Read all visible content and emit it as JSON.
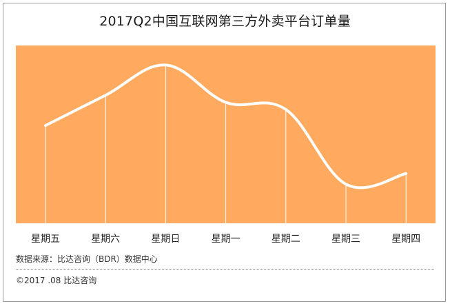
{
  "chart_data": {
    "type": "line",
    "title": "2017Q2中国互联网第三方外卖平台订单量",
    "categories": [
      "星期五",
      "星期六",
      "星期日",
      "星期一",
      "星期二",
      "星期三",
      "星期四"
    ],
    "series": [
      {
        "values": [
          55,
          72,
          89,
          68,
          64,
          22,
          28
        ]
      }
    ],
    "ylim": [
      0,
      100
    ],
    "xlabel": "",
    "ylabel": "",
    "grid": false,
    "colors": {
      "plot_background": "#FFAA5E",
      "line": "#FFFFFF",
      "drop_lines": "#FFFFFF"
    }
  },
  "footer": {
    "source": "数据来源：比达咨询（BDR）数据中心",
    "copyright": "©2017 .08  比达咨询"
  }
}
